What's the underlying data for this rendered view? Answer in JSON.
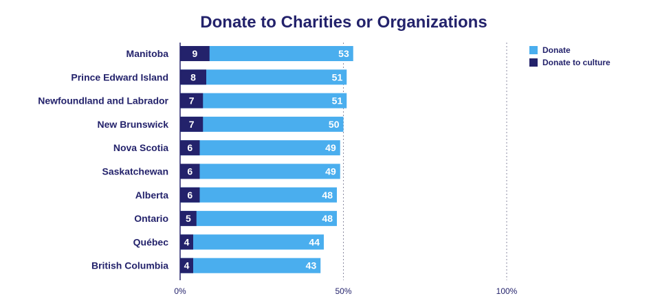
{
  "chart_data": {
    "type": "bar",
    "orientation": "horizontal",
    "stacking": "overlay",
    "title": "Donate to Charities or Organizations",
    "categories": [
      "Manitoba",
      "Prince Edward Island",
      "Newfoundland and Labrador",
      "New Brunswick",
      "Nova Scotia",
      "Saskatchewan",
      "Alberta",
      "Ontario",
      "Québec",
      "British Columbia"
    ],
    "series": [
      {
        "name": "Donate",
        "color": "#4aaeee",
        "values": [
          53,
          51,
          51,
          50,
          49,
          49,
          48,
          48,
          44,
          43
        ]
      },
      {
        "name": "Donate to culture",
        "color": "#23226b",
        "values": [
          9,
          8,
          7,
          7,
          6,
          6,
          6,
          5,
          4,
          4
        ]
      }
    ],
    "xlim": [
      0,
      100
    ],
    "xticks": [
      {
        "value": 0,
        "label": "0%"
      },
      {
        "value": 50,
        "label": "50%"
      },
      {
        "value": 100,
        "label": "100%"
      }
    ],
    "grid": "vertical dashed at 50% and 100%",
    "legend_position": "top-right",
    "xlabel": "",
    "ylabel": ""
  }
}
